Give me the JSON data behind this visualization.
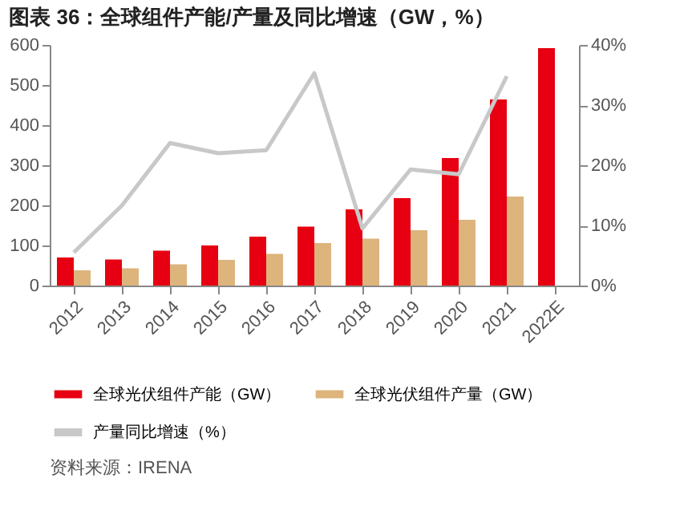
{
  "chart_data": {
    "type": "bar",
    "title": "图表 36：全球组件产能/产量及同比增速（GW，%）",
    "categories": [
      "2012",
      "2013",
      "2014",
      "2015",
      "2016",
      "2017",
      "2018",
      "2019",
      "2020",
      "2021",
      "2022E"
    ],
    "series": [
      {
        "name": "全球光伏组件产能（GW）",
        "color": "#e60012",
        "values": [
          70,
          65,
          87,
          100,
          122,
          147,
          190,
          218,
          318,
          464,
          592
        ]
      },
      {
        "name": "全球光伏组件产量（GW）",
        "color": "#dcb47c",
        "values": [
          38,
          43,
          53,
          64,
          79,
          106,
          117,
          138,
          164,
          222,
          null
        ]
      },
      {
        "name": "产量同比增速（%）",
        "color": "#c8c8c8",
        "type": "line",
        "axis": "y2",
        "values": [
          5.5,
          13.3,
          23.7,
          22,
          22.5,
          35.3,
          9.5,
          19.3,
          18.5,
          34.8,
          null
        ]
      }
    ],
    "ylim": [
      0,
      600
    ],
    "yticks": [
      0,
      100,
      200,
      300,
      400,
      500,
      600
    ],
    "y2lim": [
      0,
      40
    ],
    "y2ticks": [
      {
        "value": 0,
        "label": "0%"
      },
      {
        "value": 10,
        "label": "10%"
      },
      {
        "value": 20,
        "label": "20%"
      },
      {
        "value": 30,
        "label": "30%"
      },
      {
        "value": 40,
        "label": "40%"
      }
    ],
    "grid": false,
    "legend": "bottom",
    "annotations": [
      "资料来源：IRENA"
    ]
  }
}
